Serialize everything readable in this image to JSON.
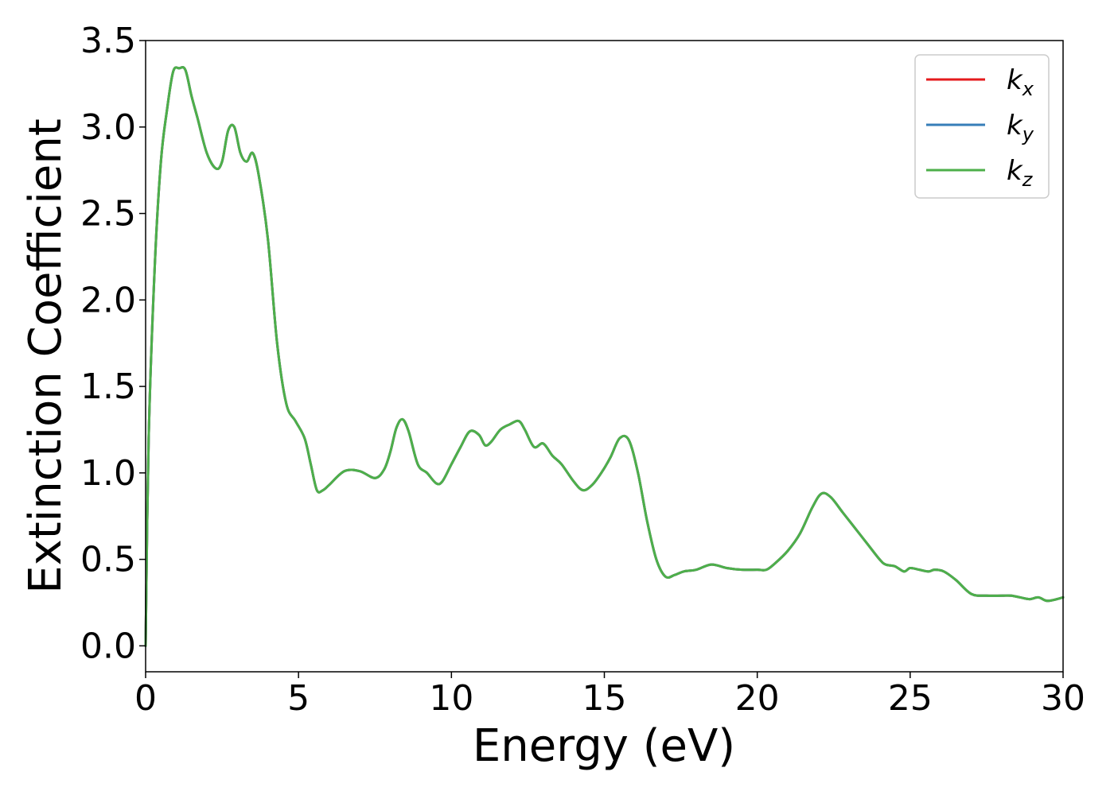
{
  "chart_data": {
    "type": "line",
    "title": "",
    "xlabel": "Energy (eV)",
    "ylabel": "Extinction Coefficient",
    "xlim": [
      0,
      30
    ],
    "ylim": [
      -0.15,
      3.5
    ],
    "xticks": [
      0,
      5,
      10,
      15,
      20,
      25,
      30
    ],
    "xtick_labels": [
      "0",
      "5",
      "10",
      "15",
      "20",
      "25",
      "30"
    ],
    "yticks": [
      0.0,
      0.5,
      1.0,
      1.5,
      2.0,
      2.5,
      3.0,
      3.5
    ],
    "ytick_labels": [
      "0.0",
      "0.5",
      "1.0",
      "1.5",
      "2.0",
      "2.5",
      "3.0",
      "3.5"
    ],
    "grid": false,
    "legend_position": "top-right",
    "series": [
      {
        "name": "k",
        "subscript": "x",
        "color": "#e41a1c"
      },
      {
        "name": "k",
        "subscript": "y",
        "color": "#377eb8"
      },
      {
        "name": "k",
        "subscript": "z",
        "color": "#4daf4a"
      }
    ],
    "x": [
      0,
      0.1,
      0.3,
      0.5,
      0.7,
      0.9,
      1.1,
      1.3,
      1.5,
      1.7,
      2.0,
      2.3,
      2.5,
      2.7,
      2.9,
      3.1,
      3.3,
      3.5,
      3.7,
      4.0,
      4.3,
      4.6,
      4.9,
      5.2,
      5.4,
      5.6,
      5.8,
      6.0,
      6.5,
      7.0,
      7.5,
      7.8,
      8.0,
      8.2,
      8.4,
      8.6,
      8.9,
      9.2,
      9.5,
      9.7,
      10.0,
      10.3,
      10.6,
      10.9,
      11.1,
      11.3,
      11.6,
      11.9,
      12.2,
      12.4,
      12.7,
      13.0,
      13.3,
      13.6,
      14.0,
      14.3,
      14.6,
      14.9,
      15.2,
      15.5,
      15.8,
      16.1,
      16.4,
      16.7,
      17.0,
      17.3,
      17.6,
      18.0,
      18.5,
      19.0,
      19.5,
      20.0,
      20.3,
      20.6,
      21.0,
      21.4,
      21.8,
      22.1,
      22.4,
      22.8,
      23.2,
      23.6,
      24.0,
      24.2,
      24.5,
      24.8,
      25.0,
      25.3,
      25.6,
      25.8,
      26.1,
      26.5,
      27.0,
      27.5,
      28.0,
      28.3,
      28.6,
      28.9,
      29.2,
      29.5,
      30.0
    ],
    "values": [
      0.0,
      1.2,
      2.2,
      2.8,
      3.1,
      3.32,
      3.34,
      3.33,
      3.18,
      3.05,
      2.85,
      2.76,
      2.8,
      2.98,
      3.0,
      2.85,
      2.8,
      2.85,
      2.72,
      2.35,
      1.75,
      1.4,
      1.3,
      1.2,
      1.05,
      0.9,
      0.9,
      0.93,
      1.01,
      1.01,
      0.97,
      1.02,
      1.12,
      1.26,
      1.31,
      1.24,
      1.05,
      1.0,
      0.94,
      0.95,
      1.05,
      1.15,
      1.24,
      1.22,
      1.16,
      1.18,
      1.25,
      1.28,
      1.3,
      1.25,
      1.15,
      1.17,
      1.1,
      1.05,
      0.95,
      0.9,
      0.93,
      1.0,
      1.09,
      1.2,
      1.19,
      1.0,
      0.72,
      0.5,
      0.4,
      0.41,
      0.43,
      0.44,
      0.47,
      0.45,
      0.44,
      0.44,
      0.44,
      0.48,
      0.55,
      0.65,
      0.8,
      0.88,
      0.86,
      0.77,
      0.68,
      0.59,
      0.5,
      0.47,
      0.46,
      0.43,
      0.45,
      0.44,
      0.43,
      0.44,
      0.43,
      0.38,
      0.3,
      0.29,
      0.29,
      0.29,
      0.28,
      0.27,
      0.28,
      0.26,
      0.28
    ]
  }
}
